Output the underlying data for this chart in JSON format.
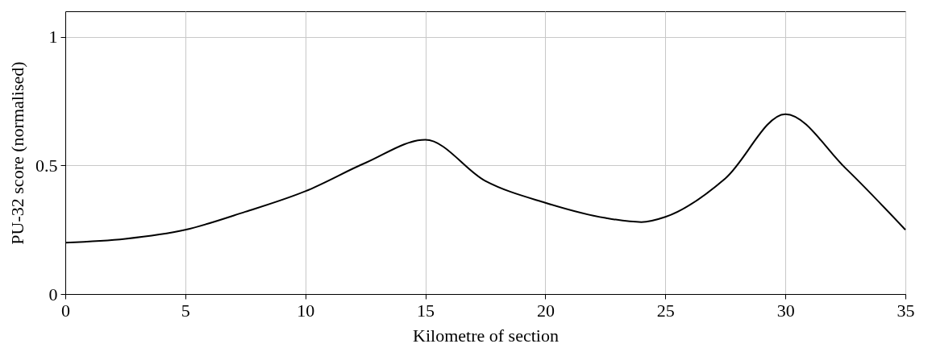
{
  "chart_data": {
    "type": "line",
    "xlabel": "Kilometre of section",
    "ylabel": "PU-32 score (normalised)",
    "x": [
      0,
      2.5,
      5,
      7.5,
      10,
      12.5,
      15,
      17.5,
      20,
      22.5,
      24,
      25,
      27.5,
      30,
      32.5,
      35
    ],
    "series": [
      {
        "color": "#000000",
        "values": [
          0.2,
          0.215,
          0.25,
          0.32,
          0.4,
          0.51,
          0.6,
          0.44,
          0.355,
          0.296,
          0.28,
          0.3,
          0.45,
          0.7,
          0.49,
          0.25
        ]
      }
    ],
    "xlim": [
      0,
      35
    ],
    "xticks": [
      0,
      5,
      10,
      15,
      20,
      25,
      30,
      35
    ],
    "ylim": [
      0,
      1.1
    ],
    "yticks": [
      0,
      0.5,
      1
    ],
    "grid": true,
    "marker": "none",
    "line_style": "solid"
  }
}
